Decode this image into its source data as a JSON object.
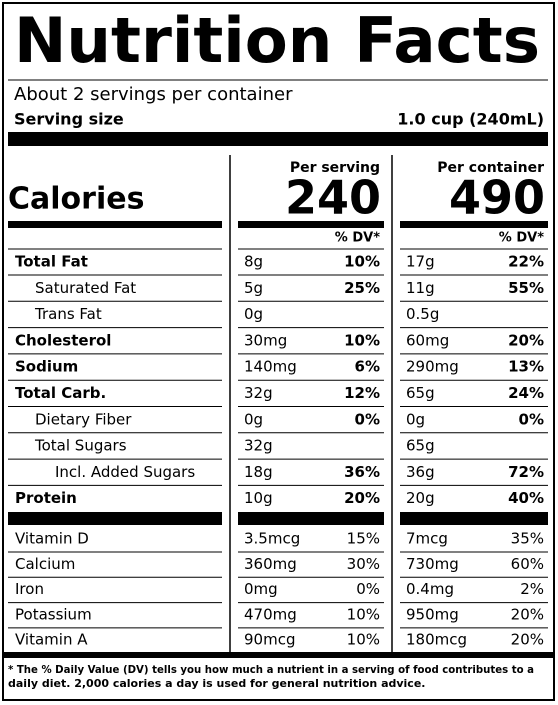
{
  "header": {
    "title": "Nutrition Facts",
    "servings": "About 2 servings per container",
    "serving_size_label": "Serving size",
    "serving_size": "1.0 cup (240mL)"
  },
  "calories": {
    "label": "Calories",
    "columns": [
      {
        "heading": "Per serving",
        "value": "240"
      },
      {
        "heading": "Per container",
        "value": "490"
      }
    ]
  },
  "dv_heading": "% DV*",
  "nutrients": [
    {
      "name": "Total Fat",
      "serving": {
        "amount": "8g",
        "dv": "10%"
      },
      "container": {
        "amount": "17g",
        "dv": "22%"
      },
      "subitems": [
        {
          "name": "Saturated Fat",
          "serving": {
            "amount": "5g",
            "dv": "25%"
          },
          "container": {
            "amount": "11g",
            "dv": "55%"
          }
        },
        {
          "name": "Trans Fat",
          "serving": {
            "amount": "0g"
          },
          "container": {
            "amount": "0.5g"
          }
        }
      ]
    },
    {
      "name": "Cholesterol",
      "serving": {
        "amount": "30mg",
        "dv": "10%"
      },
      "container": {
        "amount": "60mg",
        "dv": "20%"
      }
    },
    {
      "name": "Sodium",
      "serving": {
        "amount": "140mg",
        "dv": "6%"
      },
      "container": {
        "amount": "290mg",
        "dv": "13%"
      }
    },
    {
      "name": "Total Carb.",
      "serving": {
        "amount": "32g",
        "dv": "12%"
      },
      "container": {
        "amount": "65g",
        "dv": "24%"
      },
      "subitems": [
        {
          "name": "Dietary Fiber",
          "serving": {
            "amount": "0g",
            "dv": "0%"
          },
          "container": {
            "amount": "0g",
            "dv": "0%"
          }
        },
        {
          "name": "Total Sugars",
          "serving": {
            "amount": "32g"
          },
          "container": {
            "amount": "65g"
          },
          "subitems": [
            {
              "name": "Incl. Added Sugars",
              "serving": {
                "amount": "18g",
                "dv": "36%"
              },
              "container": {
                "amount": "36g",
                "dv": "72%"
              }
            }
          ]
        }
      ]
    },
    {
      "name": "Protein",
      "serving": {
        "amount": "10g",
        "dv": "20%"
      },
      "container": {
        "amount": "20g",
        "dv": "40%"
      }
    }
  ],
  "vitamins": [
    {
      "name": "Vitamin D",
      "serving": {
        "amount": "3.5mcg",
        "dv": "15%"
      },
      "container": {
        "amount": "7mcg",
        "dv": "35%"
      }
    },
    {
      "name": "Calcium",
      "serving": {
        "amount": "360mg",
        "dv": "30%"
      },
      "container": {
        "amount": "730mg",
        "dv": "60%"
      }
    },
    {
      "name": "Iron",
      "serving": {
        "amount": "0mg",
        "dv": "0%"
      },
      "container": {
        "amount": "0.4mg",
        "dv": "2%"
      }
    },
    {
      "name": "Potassium",
      "serving": {
        "amount": "470mg",
        "dv": "10%"
      },
      "container": {
        "amount": "950mg",
        "dv": "20%"
      }
    },
    {
      "name": "Vitamin A",
      "serving": {
        "amount": "90mcg",
        "dv": "10%"
      },
      "container": {
        "amount": "180mcg",
        "dv": "20%"
      }
    }
  ],
  "footnote": {
    "lines": [
      "* The % Daily Value (DV) tells you how much a nutrient in a serving of food contributes to a",
      "daily diet. 2,000 calories a day is used for general nutrition advice."
    ]
  }
}
